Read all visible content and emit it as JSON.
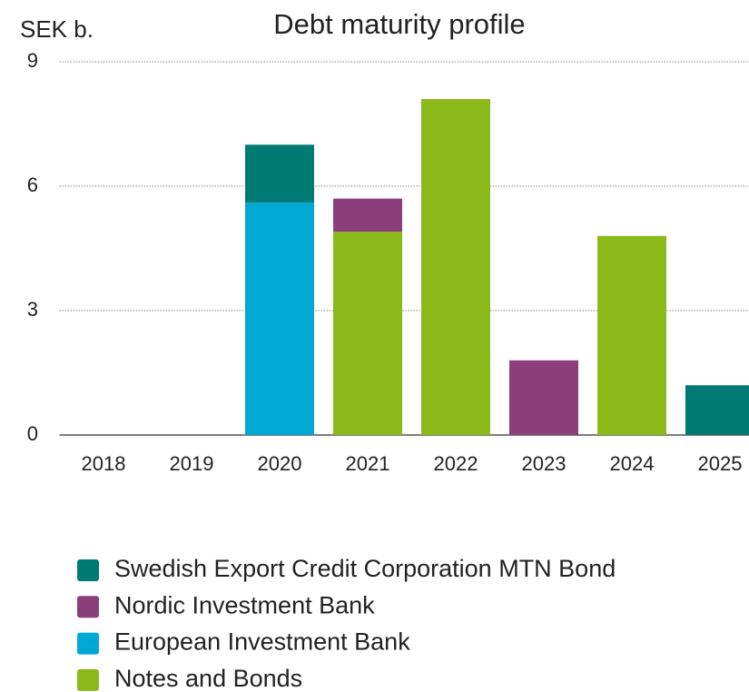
{
  "chart_data": {
    "type": "stacked_bar",
    "title": "Debt maturity profile",
    "y_label": "SEK b.",
    "categories": [
      "2018",
      "2019",
      "2020",
      "2021",
      "2022",
      "2023",
      "2024",
      "2025"
    ],
    "series": [
      {
        "name": "Swedish Export Credit Corporation MTN Bond",
        "color": "#007b73",
        "values": [
          0,
          0,
          1.4,
          0,
          0,
          0,
          0,
          1.2
        ]
      },
      {
        "name": "Nordic Investment Bank",
        "color": "#8b3f7a",
        "values": [
          0,
          0,
          0,
          0.8,
          0,
          1.8,
          0,
          0
        ]
      },
      {
        "name": "European Investment Bank",
        "color": "#00a8d4",
        "values": [
          0,
          0,
          5.6,
          0,
          0,
          0,
          0,
          0
        ]
      },
      {
        "name": "Notes and Bonds",
        "color": "#8aba1a",
        "values": [
          0,
          0,
          0,
          4.9,
          8.1,
          0,
          4.8,
          0
        ]
      }
    ],
    "ylim": [
      0,
      9
    ],
    "yticks": [
      0,
      3,
      6,
      9
    ],
    "grid": true
  }
}
